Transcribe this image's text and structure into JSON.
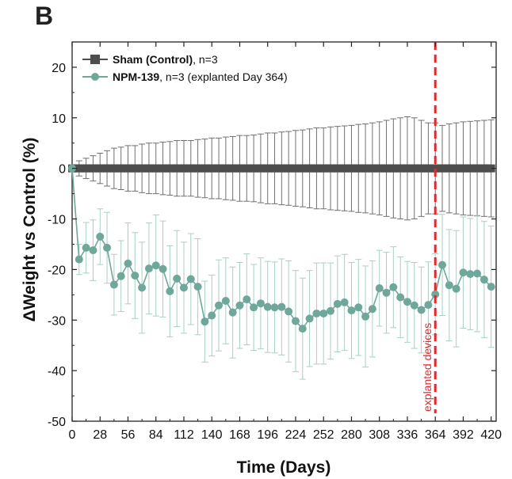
{
  "panel_label": "B",
  "chart_data": {
    "type": "line",
    "title": "",
    "xlabel": "Time (Days)",
    "ylabel": "ΔWeight vs Control (%)",
    "xlim": [
      0,
      425
    ],
    "ylim": [
      -50,
      25
    ],
    "xticks": [
      0,
      28,
      56,
      84,
      112,
      140,
      168,
      196,
      224,
      252,
      280,
      308,
      336,
      364,
      392,
      420
    ],
    "xtick_labels": [
      "0",
      "28",
      "56",
      "84",
      "112",
      "140",
      "168",
      "196",
      "224",
      "252",
      "280",
      "308",
      "336",
      "364",
      "392",
      "420"
    ],
    "yticks": [
      -50,
      -40,
      -30,
      -20,
      -10,
      0,
      10,
      20
    ],
    "ytick_labels": [
      "-50",
      "-40",
      "-30",
      "-20",
      "-10",
      "0",
      "10",
      "20"
    ],
    "grid": false,
    "legend_position": "top-left",
    "series": [
      {
        "name": "Sham (Control), n=3",
        "legend_bold": "Sham (Control)",
        "legend_rest": ", n=3",
        "color": "#4d4d4d",
        "marker": "square",
        "x": [
          0,
          7,
          14,
          21,
          28,
          35,
          42,
          49,
          56,
          63,
          70,
          77,
          84,
          91,
          98,
          105,
          112,
          119,
          126,
          133,
          140,
          147,
          154,
          161,
          168,
          175,
          182,
          189,
          196,
          203,
          210,
          217,
          224,
          231,
          238,
          245,
          252,
          259,
          266,
          273,
          280,
          287,
          294,
          301,
          308,
          315,
          322,
          329,
          336,
          343,
          350,
          357,
          364,
          371,
          378,
          385,
          392,
          399,
          406,
          413,
          420
        ],
        "y": [
          0,
          0,
          0,
          0,
          0,
          0,
          0,
          0,
          0,
          0,
          0,
          0,
          0,
          0,
          0,
          0,
          0,
          0,
          0,
          0,
          0,
          0,
          0,
          0,
          0,
          0,
          0,
          0,
          0,
          0,
          0,
          0,
          0,
          0,
          0,
          0,
          0,
          0,
          0,
          0,
          0,
          0,
          0,
          0,
          0,
          0,
          0,
          0,
          0,
          0,
          0,
          0,
          0,
          0,
          0,
          0,
          0,
          0,
          0,
          0,
          0
        ],
        "err": [
          0.5,
          1.5,
          2.0,
          2.5,
          3.0,
          3.5,
          4.0,
          4.2,
          4.5,
          4.5,
          4.8,
          5.0,
          5.0,
          5.2,
          5.3,
          5.5,
          5.5,
          5.5,
          5.7,
          5.8,
          6.0,
          6.0,
          6.2,
          6.3,
          6.5,
          6.5,
          6.6,
          6.8,
          7.0,
          7.0,
          7.2,
          7.3,
          7.5,
          7.6,
          7.8,
          8.0,
          8.0,
          8.2,
          8.3,
          8.4,
          8.5,
          8.7,
          8.8,
          9.0,
          9.2,
          9.5,
          9.8,
          10.0,
          10.2,
          10.0,
          9.5,
          9.0,
          9.0,
          8.5,
          8.8,
          9.0,
          9.2,
          9.3,
          9.4,
          9.5,
          9.6
        ]
      },
      {
        "name": "NPM-139, n=3 (explanted Day 364)",
        "legend_bold": "NPM-139",
        "legend_rest": ", n=3 (explanted Day 364)",
        "color": "#6fa89a",
        "marker": "circle",
        "x": [
          0,
          7,
          14,
          21,
          28,
          35,
          42,
          49,
          56,
          63,
          70,
          77,
          84,
          91,
          98,
          105,
          112,
          119,
          126,
          133,
          140,
          147,
          154,
          161,
          168,
          175,
          182,
          189,
          196,
          203,
          210,
          217,
          224,
          231,
          238,
          245,
          252,
          259,
          266,
          273,
          280,
          287,
          294,
          301,
          308,
          315,
          322,
          329,
          336,
          343,
          350,
          357,
          364,
          371,
          378,
          385,
          392,
          399,
          406,
          413,
          420
        ],
        "y": [
          0,
          -18,
          -15.7,
          -16.2,
          -13.5,
          -15.7,
          -23,
          -21.3,
          -18.8,
          -21.2,
          -23.6,
          -19.8,
          -19.2,
          -19.9,
          -24.3,
          -21.8,
          -23.6,
          -21.9,
          -23.4,
          -30.3,
          -29.1,
          -27.1,
          -26.2,
          -28.5,
          -27.1,
          -25.9,
          -27.5,
          -26.7,
          -27.4,
          -27.5,
          -27.4,
          -28.3,
          -30.2,
          -31.7,
          -29.7,
          -28.7,
          -28.7,
          -28.2,
          -26.8,
          -26.5,
          -28.1,
          -27.5,
          -29.3,
          -27.8,
          -23.7,
          -24.6,
          -23.5,
          -25.5,
          -26.4,
          -27.1,
          -28.0,
          -27.0,
          -24.9,
          -19.1,
          -23.1,
          -23.8,
          -20.6,
          -20.9,
          -20.8,
          -22.0,
          -23.4
        ],
        "err": [
          0.5,
          3.0,
          5.0,
          6.0,
          5.5,
          7.0,
          6.0,
          7.0,
          8.0,
          8.5,
          9.0,
          9.0,
          10.0,
          9.5,
          9.0,
          9.5,
          9.0,
          9.0,
          9.5,
          8.0,
          8.0,
          9.0,
          8.5,
          9.0,
          8.5,
          9.0,
          8.5,
          9.0,
          9.0,
          9.0,
          9.5,
          10.0,
          10.0,
          10.0,
          9.5,
          10.0,
          10.0,
          9.5,
          9.5,
          9.5,
          9.5,
          9.5,
          10.0,
          9.5,
          7.5,
          8.0,
          8.0,
          8.0,
          8.0,
          8.5,
          8.5,
          8.5,
          8.0,
          10.0,
          11.0,
          11.5,
          11.0,
          11.0,
          11.5,
          11.5,
          12.0
        ]
      }
    ],
    "annotations": [
      {
        "text": "explanted devices",
        "x": 364,
        "color": "#e8252a",
        "style": "dashed vertical line"
      }
    ]
  }
}
